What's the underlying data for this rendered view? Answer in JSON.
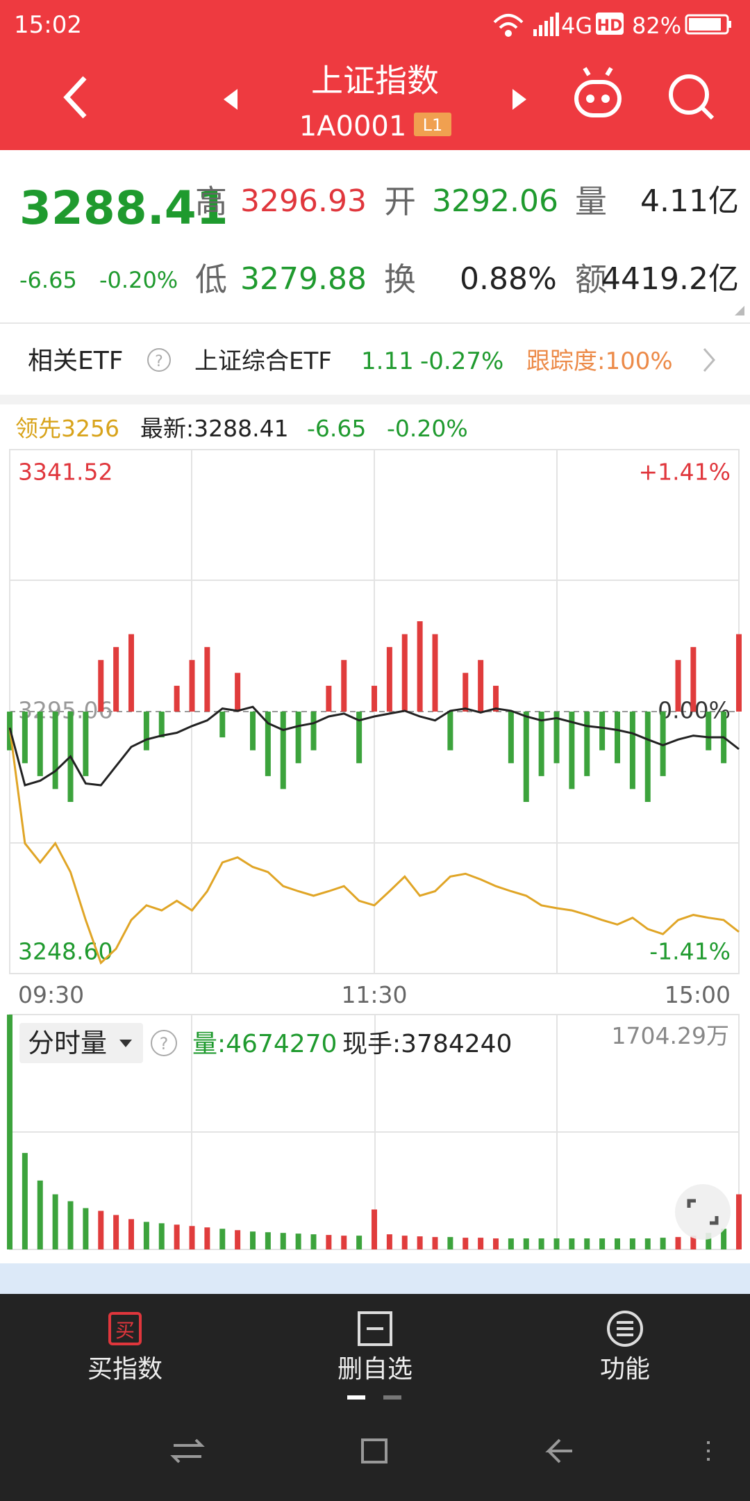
{
  "status_bar": {
    "time": "15:02",
    "network": "4G",
    "hd": "HD",
    "battery": "82%"
  },
  "header": {
    "title": "上证指数",
    "code": "1A0001",
    "level": "L1"
  },
  "quote": {
    "price": "3288.41",
    "change": "-6.65",
    "change_pct": "-0.20%",
    "high_label": "高",
    "high": "3296.93",
    "low_label": "低",
    "low": "3279.88",
    "open_label": "开",
    "open": "3292.06",
    "turnover_label": "换",
    "turnover": "0.88%",
    "volume_label": "量",
    "volume": "4.11亿",
    "amount_label": "额",
    "amount": "4419.2亿"
  },
  "etf": {
    "label": "相关ETF",
    "name": "上证综合ETF",
    "price": "1.11",
    "change_pct": "-0.27%",
    "tracking": "跟踪度:100%"
  },
  "chart_legend": {
    "leader": "领先3256",
    "latest": "最新:3288.41",
    "change": "-6.65",
    "change_pct": "-0.20%"
  },
  "chart_data": [
    {
      "type": "line",
      "x": [
        0,
        5,
        10,
        15,
        20,
        25,
        30,
        35,
        40,
        45,
        50,
        55,
        60,
        65,
        70,
        75,
        80,
        85,
        90,
        95,
        100,
        105,
        110,
        115,
        120,
        125,
        130,
        135,
        140,
        145,
        150,
        155,
        160,
        165,
        170,
        175,
        180,
        185,
        190,
        195,
        200,
        205,
        210,
        215,
        220,
        225,
        230,
        235,
        240
      ],
      "xlim": [
        0,
        240
      ],
      "xticks": [
        {
          "value": 0,
          "label": "09:30"
        },
        {
          "value": 120,
          "label": "11:30"
        },
        {
          "value": 240,
          "label": "15:00"
        }
      ],
      "ylim": [
        3248.6,
        3341.52
      ],
      "yticks": [
        {
          "value": 3248.6,
          "label": "3248.60"
        },
        3295.06,
        3341.52
      ],
      "y2lim": [
        -1.41,
        1.41
      ],
      "y2ticks": [
        {
          "value": -1.41,
          "label": "-1.41%"
        },
        {
          "value": 0,
          "label": "0.00%"
        },
        {
          "value": 1.41,
          "label": "+1.41%"
        }
      ],
      "series": [
        {
          "color": "#222222",
          "values": [
            3292.2,
            3282.0,
            3282.8,
            3284.5,
            3287.1,
            3282.3,
            3282.0,
            3285.4,
            3288.8,
            3290.1,
            3290.8,
            3291.3,
            3292.5,
            3293.5,
            3295.6,
            3295.2,
            3295.9,
            3293.0,
            3291.8,
            3292.5,
            3293.0,
            3294.2,
            3294.7,
            3293.5,
            3294.2,
            3294.7,
            3295.2,
            3294.2,
            3293.5,
            3295.2,
            3295.6,
            3294.9,
            3295.6,
            3295.2,
            3294.2,
            3293.5,
            3293.9,
            3293.2,
            3292.5,
            3292.2,
            3291.8,
            3291.2,
            3290.1,
            3289.1,
            3290.1,
            3290.8,
            3290.5,
            3290.5,
            3288.41
          ]
        },
        {
          "color": "#e0a526",
          "values": [
            3292.2,
            3271.7,
            3268.3,
            3271.7,
            3266.6,
            3258.1,
            3250.5,
            3253.0,
            3258.1,
            3260.7,
            3259.8,
            3261.5,
            3259.8,
            3263.2,
            3268.3,
            3269.2,
            3267.5,
            3266.6,
            3264.1,
            3263.2,
            3262.4,
            3263.2,
            3264.1,
            3261.5,
            3260.7,
            3263.2,
            3265.8,
            3262.4,
            3263.2,
            3265.8,
            3266.3,
            3265.3,
            3264.1,
            3263.2,
            3262.4,
            3260.7,
            3260.2,
            3259.8,
            3259.0,
            3258.1,
            3257.3,
            3258.5,
            3256.5,
            3255.6,
            3258.1,
            3259.0,
            3258.5,
            3258.1,
            3256
          ]
        }
      ],
      "bar_values": [
        -30,
        -40,
        -50,
        -60,
        -70,
        -50,
        40,
        50,
        60,
        -30,
        -20,
        20,
        40,
        50,
        -20,
        30,
        -30,
        -50,
        -60,
        -40,
        -30,
        20,
        40,
        -40,
        20,
        50,
        60,
        70,
        60,
        -30,
        30,
        40,
        20,
        -40,
        -70,
        -50,
        -40,
        -60,
        -50,
        -30,
        -40,
        -60,
        -70,
        -50,
        40,
        50,
        -30,
        -40,
        60
      ],
      "up_color": "#e03c3c",
      "down_color": "#3ca33c"
    },
    {
      "type": "bar",
      "x": [
        0,
        5,
        10,
        15,
        20,
        25,
        30,
        35,
        40,
        45,
        50,
        55,
        60,
        65,
        70,
        75,
        80,
        85,
        90,
        95,
        100,
        105,
        110,
        115,
        120,
        125,
        130,
        135,
        140,
        145,
        150,
        155,
        160,
        165,
        170,
        175,
        180,
        185,
        190,
        195,
        200,
        205,
        210,
        215,
        220,
        225,
        230,
        235,
        240
      ],
      "xlim": [
        0,
        240
      ],
      "values": [
        1704,
        700,
        500,
        400,
        350,
        300,
        280,
        250,
        220,
        200,
        190,
        180,
        170,
        160,
        150,
        140,
        130,
        125,
        120,
        115,
        110,
        105,
        100,
        100,
        290,
        110,
        100,
        95,
        90,
        90,
        85,
        85,
        80,
        80,
        80,
        80,
        80,
        80,
        80,
        80,
        80,
        80,
        80,
        85,
        90,
        100,
        120,
        150,
        400
      ],
      "ylim": [
        0,
        1704.29
      ],
      "yticks": [
        {
          "value": 1704.29,
          "label": "1704.29万"
        }
      ]
    }
  ],
  "volume_header": {
    "mode": "分时量",
    "volume": "量:4674270",
    "current": "现手:3784240"
  },
  "bottom_nav": {
    "items": [
      "买指数",
      "删自选",
      "功能"
    ],
    "buy_icon": "买"
  }
}
